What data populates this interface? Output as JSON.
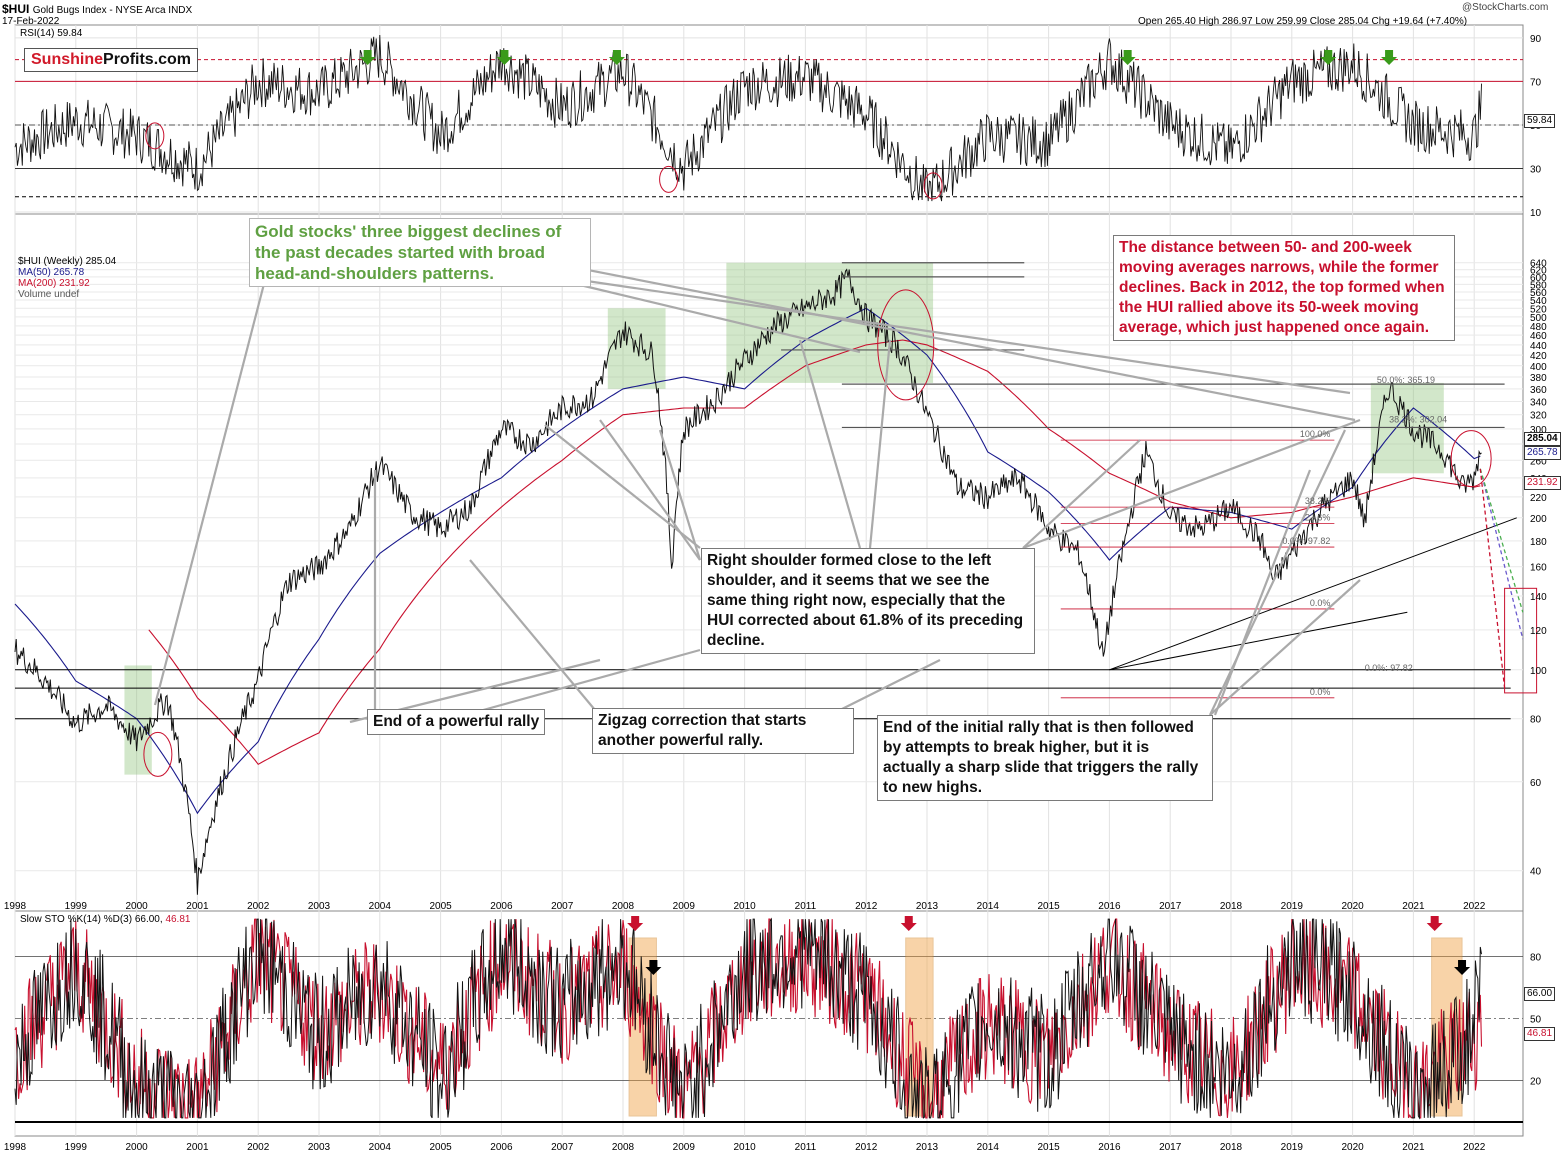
{
  "header": {
    "symbol": "$HUI",
    "name": "Gold Bugs Index - NYSE Arca INDX",
    "date": "17-Feb-2022",
    "ohlc": "Open 265.40  High 286.97  Low 259.99  Close 285.04  Chg +19.64 (+7.40%)",
    "watermark": "@StockCharts.com"
  },
  "logo": {
    "part1": "Sunshine",
    "part2": "Profits.com"
  },
  "rsi_panel": {
    "label": "RSI(14) 59.84",
    "ticks": [
      "90",
      "70",
      "50",
      "30",
      "10"
    ],
    "current": "59.84"
  },
  "price_panel": {
    "legend": [
      "$HUI (Weekly) 285.04",
      "MA(50) 265.78",
      "MA(200) 231.92",
      "Volume undef"
    ],
    "legend_colors": [
      "#000000",
      "#1a1a8c",
      "#c8102e",
      "#555555"
    ],
    "ticks": [
      "640",
      "620",
      "600",
      "580",
      "560",
      "540",
      "520",
      "500",
      "480",
      "460",
      "440",
      "420",
      "400",
      "380",
      "360",
      "340",
      "320",
      "300",
      "280",
      "260",
      "240",
      "220",
      "200",
      "180",
      "160",
      "140",
      "120",
      "100",
      "80",
      "60",
      "40"
    ],
    "price_label": "285.04",
    "ma50_label": "265.78",
    "ma200_label": "231.92",
    "fib_labels": [
      "50.0%: 365.19",
      "38.2%: 302.04",
      "100.0%",
      "61.8%",
      "50.0%",
      "38.2%",
      "23.6%",
      "0.0%: 97.82",
      "0.0%"
    ]
  },
  "x_labels": [
    "1998",
    "1999",
    "2000",
    "2001",
    "2002",
    "2003",
    "2004",
    "2005",
    "2006",
    "2007",
    "2008",
    "2009",
    "2010",
    "2011",
    "2012",
    "2013",
    "2014",
    "2015",
    "2016",
    "2017",
    "2018",
    "2019",
    "2020",
    "2021",
    "2022"
  ],
  "sto_panel": {
    "label_black": "Slow STO %K(14) %D(3) 66.00,",
    "label_red": "46.81",
    "ticks": [
      "80",
      "50",
      "20"
    ],
    "k_value": "66.00",
    "d_value": "46.81"
  },
  "annotations": {
    "green_note": "Gold stocks' three biggest declines of the past decades started with broad head-and-shoulders patterns.",
    "red_note": "The distance between 50- and 200-week moving averages narrows, while the former declines. Back in 2012, the top formed when the HUI rallied above its 50-week moving average, which just happened once again.",
    "right_shoulder": "Right shoulder formed close to the left shoulder, and it seems that we see the same thing right now, especially that the HUI corrected about 61.8% of its preceding decline.",
    "end_rally": "End of a powerful rally",
    "zigzag": "Zigzag correction that starts another powerful rally.",
    "initial_rally": "End of the initial rally that is then followed by attempts to break higher, but it is actually a sharp slide that triggers the rally to new highs."
  },
  "colors": {
    "price": "#000000",
    "ma50": "#1a1a8c",
    "ma200": "#c8102e",
    "green_box": "#8fc37a",
    "orange_box": "#f0a040",
    "accent_red": "#c8102e",
    "arrow_green": "#3a9a1a"
  },
  "chart_data": [
    {
      "type": "line",
      "title": "RSI(14) 59.84",
      "series": [
        {
          "name": "RSI(14)",
          "x": [
            1998.0,
            1999.0,
            2000.0,
            2001.0,
            2002.0,
            2003.0,
            2004.0,
            2005.0,
            2006.0,
            2007.0,
            2008.0,
            2009.0,
            2010.0,
            2011.0,
            2012.0,
            2013.0,
            2014.0,
            2015.0,
            2016.0,
            2017.0,
            2018.0,
            2019.0,
            2020.0,
            2021.0,
            2022.0,
            2022.13
          ],
          "values": [
            40,
            52,
            45,
            30,
            70,
            65,
            82,
            45,
            80,
            58,
            75,
            30,
            68,
            72,
            55,
            18,
            45,
            42,
            80,
            50,
            38,
            70,
            78,
            50,
            45,
            59.84
          ]
        }
      ],
      "ylim": [
        10,
        95
      ]
    },
    {
      "type": "line",
      "title": "$HUI (Weekly) 285.04",
      "series": [
        {
          "name": "$HUI (Weekly)",
          "x": [
            1998.0,
            1998.5,
            1999.0,
            1999.5,
            2000.0,
            2000.5,
            2001.0,
            2001.5,
            2002.0,
            2002.5,
            2003.0,
            2003.5,
            2004.0,
            2004.5,
            2005.0,
            2005.5,
            2006.0,
            2006.5,
            2007.0,
            2007.5,
            2008.0,
            2008.5,
            2008.8,
            2009.0,
            2009.5,
            2010.0,
            2010.5,
            2011.0,
            2011.5,
            2011.7,
            2012.0,
            2012.5,
            2013.0,
            2013.5,
            2014.0,
            2014.5,
            2015.0,
            2015.5,
            2015.9,
            2016.3,
            2016.6,
            2017.0,
            2017.5,
            2018.0,
            2018.5,
            2018.7,
            2019.0,
            2019.5,
            2020.0,
            2020.2,
            2020.6,
            2021.0,
            2021.5,
            2021.8,
            2022.0,
            2022.13
          ],
          "values": [
            110,
            95,
            78,
            85,
            72,
            88,
            38,
            65,
            95,
            150,
            160,
            190,
            255,
            205,
            190,
            210,
            300,
            280,
            330,
            345,
            470,
            420,
            160,
            300,
            340,
            410,
            480,
            520,
            560,
            600,
            500,
            440,
            320,
            230,
            220,
            240,
            190,
            170,
            105,
            190,
            270,
            200,
            190,
            210,
            180,
            150,
            170,
            210,
            240,
            195,
            365,
            300,
            270,
            230,
            240,
            285.04
          ]
        },
        {
          "name": "MA(50)",
          "x": [
            1998.0,
            1999.0,
            2000.0,
            2001.0,
            2002.0,
            2003.0,
            2004.0,
            2005.0,
            2006.0,
            2007.0,
            2008.0,
            2009.0,
            2010.0,
            2011.0,
            2012.0,
            2013.0,
            2014.0,
            2015.0,
            2016.0,
            2017.0,
            2018.0,
            2019.0,
            2020.0,
            2021.0,
            2022.0,
            2022.13
          ],
          "values": [
            135,
            95,
            80,
            52,
            72,
            115,
            170,
            205,
            240,
            300,
            360,
            380,
            360,
            450,
            520,
            420,
            270,
            225,
            165,
            210,
            205,
            190,
            230,
            330,
            262,
            265.78
          ]
        },
        {
          "name": "MA(200)",
          "x": [
            2000.2,
            2001.0,
            2002.0,
            2003.0,
            2004.0,
            2005.0,
            2006.0,
            2007.0,
            2008.0,
            2009.0,
            2010.0,
            2011.0,
            2012.0,
            2012.6,
            2013.0,
            2014.0,
            2015.0,
            2016.0,
            2017.0,
            2018.0,
            2019.0,
            2020.0,
            2021.0,
            2022.0,
            2022.13
          ],
          "values": [
            120,
            88,
            65,
            75,
            110,
            160,
            210,
            260,
            320,
            330,
            330,
            400,
            440,
            450,
            440,
            390,
            300,
            245,
            215,
            200,
            205,
            220,
            240,
            230,
            231.92
          ]
        }
      ],
      "fib_levels": [
        {
          "label": "50.0%: 365.19",
          "value": 365.19
        },
        {
          "label": "38.2%: 302.04",
          "value": 302.04
        },
        {
          "label": "0.0%: 97.82",
          "value": 97.82
        }
      ],
      "ylim": [
        35,
        660
      ],
      "scale": "log"
    },
    {
      "type": "line",
      "title": "Slow STO %K(14) %D(3) 66.00, 46.81",
      "series": [
        {
          "name": "%K(14)",
          "x": [
            1998.0,
            1999.0,
            2000.0,
            2001.0,
            2002.0,
            2003.0,
            2004.0,
            2005.0,
            2006.0,
            2007.0,
            2008.0,
            2009.0,
            2010.0,
            2011.0,
            2012.0,
            2013.0,
            2014.0,
            2015.0,
            2016.0,
            2017.0,
            2018.0,
            2019.0,
            2020.0,
            2021.0,
            2022.0,
            2022.13
          ],
          "values": [
            30,
            80,
            15,
            5,
            85,
            40,
            70,
            20,
            85,
            55,
            80,
            10,
            75,
            85,
            60,
            5,
            50,
            30,
            85,
            40,
            20,
            80,
            65,
            10,
            45,
            66.0
          ]
        },
        {
          "name": "%D(3)",
          "x": [
            1998.0,
            1999.0,
            2000.0,
            2001.0,
            2002.0,
            2003.0,
            2004.0,
            2005.0,
            2006.0,
            2007.0,
            2008.0,
            2009.0,
            2010.0,
            2011.0,
            2012.0,
            2013.0,
            2014.0,
            2015.0,
            2016.0,
            2017.0,
            2018.0,
            2019.0,
            2020.0,
            2021.0,
            2022.0,
            2022.13
          ],
          "values": [
            35,
            75,
            20,
            8,
            80,
            45,
            65,
            25,
            80,
            55,
            75,
            12,
            70,
            80,
            62,
            8,
            48,
            32,
            80,
            42,
            22,
            75,
            62,
            14,
            42,
            46.81
          ]
        }
      ],
      "ylim": [
        0,
        100
      ]
    }
  ]
}
